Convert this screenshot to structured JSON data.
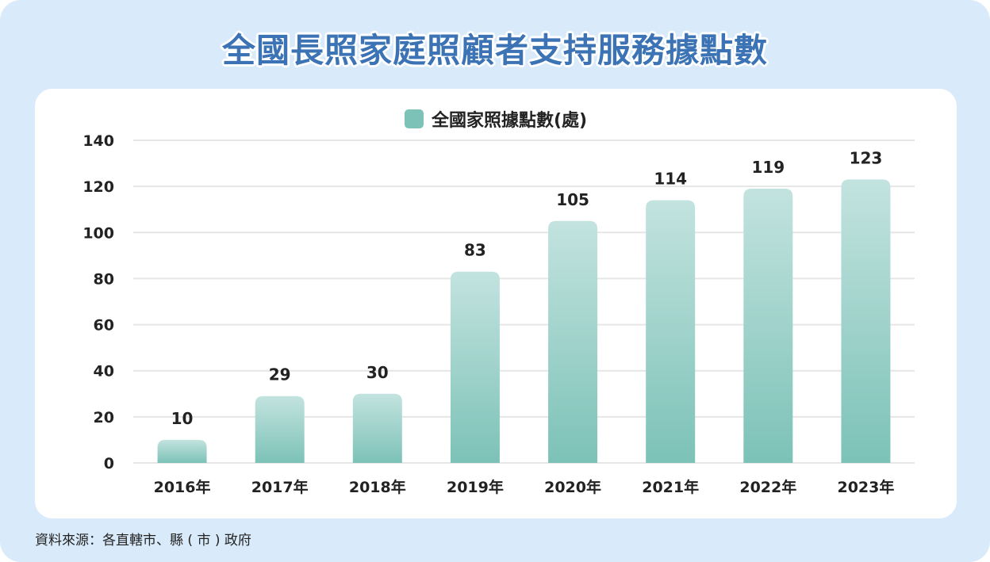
{
  "title": "全國長照家庭照顧者支持服務據點數",
  "legend": {
    "label": "全國家照據點數(處)"
  },
  "source": "資料來源：各直轄市、縣 ( 市 ) 政府",
  "colors": {
    "background": "#d9ebfa",
    "title": "#3b73b5",
    "bar_top": "#c3e3df",
    "bar_bottom": "#7cc2b7",
    "grid": "#e6e6e6"
  },
  "chart_data": {
    "type": "bar",
    "categories": [
      "2016年",
      "2017年",
      "2018年",
      "2019年",
      "2020年",
      "2021年",
      "2022年",
      "2023年"
    ],
    "series": [
      {
        "name": "全國家照據點數(處)",
        "values": [
          10,
          29,
          30,
          83,
          105,
          114,
          119,
          123
        ]
      }
    ],
    "yticks": [
      0,
      20,
      40,
      60,
      80,
      100,
      120,
      140
    ],
    "ylim": [
      0,
      140
    ],
    "grid": true,
    "legend_position": "top-center",
    "data_labels": true
  }
}
